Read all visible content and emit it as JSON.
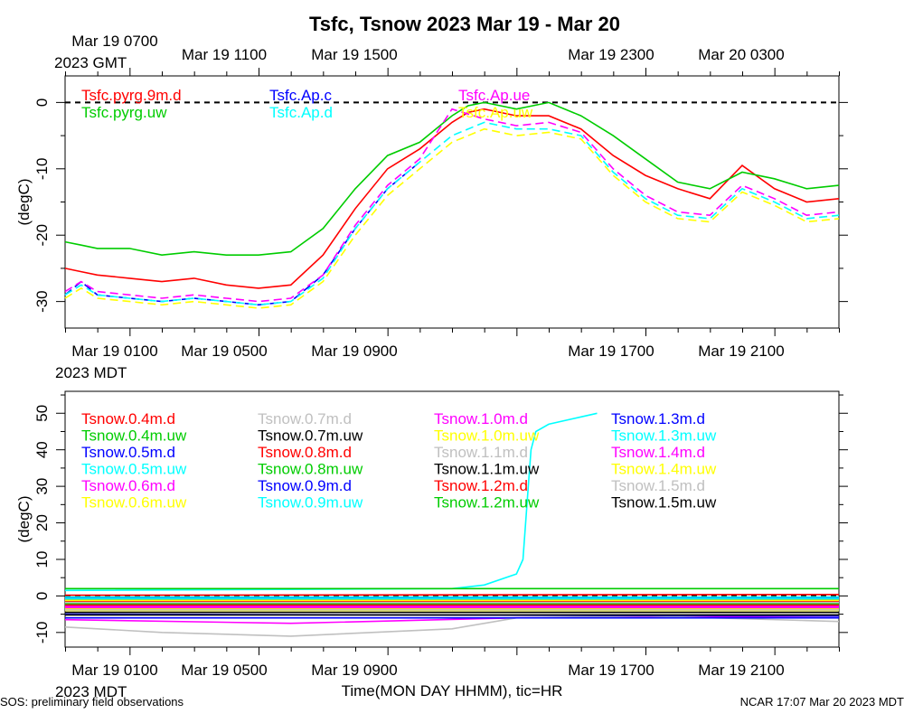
{
  "chart_data": [
    {
      "type": "line",
      "title": "Tsfc, Tsnow 2023 Mar 19 - Mar 20",
      "ylabel": "(degC)",
      "ylim": [
        -34,
        4
      ],
      "yticks": [
        -30,
        -20,
        -10,
        0
      ],
      "xlim_hours": [
        0,
        24
      ],
      "top_axis_labels": [
        "Mar 19 0700",
        "Mar 19 1100",
        "Mar 19 1500",
        "Mar 19 2300",
        "Mar 20 0300"
      ],
      "top_axis_sublabel": "2023 GMT",
      "bottom_axis_labels": [
        "Mar 19 0100",
        "Mar 19 0500",
        "Mar 19 0900",
        "Mar 19 1700",
        "Mar 19 2100"
      ],
      "bottom_axis_sublabel": "2023 MDT",
      "reference_line": 0,
      "grid": false,
      "series": [
        {
          "name": "Tsfc.pyrg.9m.d",
          "color": "#ff0000",
          "x": [
            0,
            0.5,
            1,
            2,
            3,
            4,
            5,
            6,
            7,
            8,
            9,
            10,
            11,
            12,
            12.5,
            13,
            13.5,
            14,
            15,
            16,
            17,
            18,
            19,
            20,
            21,
            22,
            23,
            24
          ],
          "y": [
            -25,
            -25.5,
            -26,
            -26.5,
            -27,
            -26.5,
            -27.5,
            -28,
            -27.5,
            -23,
            -16,
            -10,
            -7,
            -3,
            -1.5,
            -1,
            -1.5,
            -2,
            -2,
            -4,
            -8,
            -11,
            -13,
            -14.5,
            -9.5,
            -13,
            -15,
            -14.5
          ]
        },
        {
          "name": "Tsfc.pyrg.uw",
          "color": "#00cc00",
          "x": [
            0,
            0.5,
            1,
            2,
            3,
            4,
            5,
            6,
            7,
            8,
            9,
            10,
            11,
            12,
            12.5,
            13,
            13.5,
            14,
            15,
            16,
            17,
            18,
            19,
            20,
            21,
            22,
            23,
            24
          ],
          "y": [
            -21,
            -21.5,
            -22,
            -22,
            -23,
            -22.5,
            -23,
            -23,
            -22.5,
            -19,
            -13,
            -8,
            -6,
            -2,
            -0.5,
            0,
            -0.5,
            -1,
            0,
            -2,
            -5,
            -8.5,
            -12,
            -13,
            -10.5,
            -11.5,
            -13,
            -12.5
          ]
        },
        {
          "name": "Tsfc.Ap.c",
          "color": "#0000ff",
          "x": [
            0,
            0.5,
            1,
            2,
            3,
            4,
            5,
            6,
            7,
            8,
            9,
            10,
            11
          ],
          "y": [
            -29,
            -27,
            -29,
            -29.5,
            -30,
            -29.5,
            -30,
            -30.5,
            -30,
            -26,
            -19,
            -13,
            -9
          ]
        },
        {
          "name": "Tsfc.Ap.d",
          "color": "#00ffff",
          "x": [
            0,
            0.5,
            1,
            2,
            3,
            4,
            5,
            6,
            7,
            8,
            9,
            10,
            11,
            12,
            13,
            14,
            15,
            16,
            17,
            18,
            19,
            20,
            21,
            22,
            23,
            24
          ],
          "y": [
            -29,
            -27.5,
            -29,
            -29.5,
            -30,
            -29.5,
            -30,
            -30.5,
            -30,
            -26.5,
            -19,
            -13,
            -9,
            -5,
            -3,
            -4,
            -4,
            -5,
            -10.5,
            -14.5,
            -17,
            -17.5,
            -13,
            -15,
            -17.5,
            -17
          ]
        },
        {
          "name": "Tsfc.Ap.ue",
          "color": "#ff00ff",
          "x": [
            0,
            0.5,
            1,
            2,
            3,
            4,
            5,
            6,
            7,
            8,
            9,
            10,
            11,
            12,
            13,
            14,
            15,
            16,
            17,
            18,
            19,
            20,
            21,
            22,
            23,
            24
          ],
          "y": [
            -28.5,
            -27,
            -28.5,
            -29,
            -29.5,
            -29,
            -29.5,
            -30,
            -29.5,
            -26,
            -18.5,
            -12.5,
            -8.5,
            -1,
            -2.5,
            -3.5,
            -3,
            -4.5,
            -10,
            -14,
            -16.5,
            -17,
            -12.5,
            -14.5,
            -17,
            -16.5
          ]
        },
        {
          "name": "Tsfc.Ap.uw",
          "color": "#ffff00",
          "x": [
            0,
            0.5,
            1,
            2,
            3,
            4,
            5,
            6,
            7,
            8,
            9,
            10,
            11,
            12,
            13,
            14,
            15,
            16,
            17,
            18,
            19,
            20,
            21,
            22,
            23,
            24
          ],
          "y": [
            -29.5,
            -28,
            -29.5,
            -30,
            -30.5,
            -30,
            -30.5,
            -31,
            -30.5,
            -27,
            -20,
            -14,
            -10,
            -6,
            -4,
            -5,
            -4.5,
            -5.5,
            -11,
            -15,
            -17.5,
            -18,
            -13.5,
            -15.5,
            -18,
            -17.5
          ]
        }
      ]
    },
    {
      "type": "line",
      "ylabel": "(degC)",
      "ylim": [
        -14,
        56
      ],
      "yticks": [
        -10,
        0,
        10,
        20,
        30,
        40,
        50
      ],
      "xlim_hours": [
        0,
        24
      ],
      "bottom_axis_labels": [
        "Mar 19 0100",
        "Mar 19 0500",
        "Mar 19 0900",
        "Mar 19 1700",
        "Mar 19 2100"
      ],
      "bottom_axis_sublabel": "2023 MDT",
      "xlabel": "Time(MON DAY HHMM), tic=HR",
      "reference_line": 0,
      "grid": false,
      "series": [
        {
          "name": "Tsnow.0.4m.d",
          "color": "#ff0000",
          "x": [
            0,
            24
          ],
          "y": [
            0.2,
            0.4
          ]
        },
        {
          "name": "Tsnow.0.4m.uw",
          "color": "#00cc00",
          "x": [
            0,
            24
          ],
          "y": [
            -3,
            -3
          ]
        },
        {
          "name": "Tsnow.0.5m.d",
          "color": "#0000ff",
          "x": [
            0,
            24
          ],
          "y": [
            -0.5,
            -0.5
          ]
        },
        {
          "name": "Tsnow.0.5m.uw",
          "color": "#00ffff",
          "x": [
            0,
            12,
            13,
            14,
            14.2,
            14.35,
            14.45,
            14.6,
            15,
            16,
            16.5
          ],
          "y": [
            1.5,
            2,
            3,
            6,
            10,
            28,
            40,
            45,
            47,
            49,
            50
          ]
        },
        {
          "name": "Tsnow.0.6m.d",
          "color": "#ff00ff",
          "x": [
            0,
            7,
            14,
            24
          ],
          "y": [
            -6.5,
            -7.5,
            -6,
            -5.5
          ]
        },
        {
          "name": "Tsnow.0.6m.uw",
          "color": "#ffff00",
          "x": [
            0,
            24
          ],
          "y": [
            -4,
            -4
          ]
        },
        {
          "name": "Tsnow.0.7m.d",
          "color": "#c0c0c0",
          "x": [
            0,
            3,
            7,
            12,
            14,
            18,
            24
          ],
          "y": [
            -8.5,
            -10,
            -11,
            -9,
            -6,
            -5.5,
            -7
          ]
        },
        {
          "name": "Tsnow.0.7m.uw",
          "color": "#000000",
          "x": [
            0,
            24
          ],
          "y": [
            -1,
            -1
          ]
        },
        {
          "name": "Tsnow.0.8m.d",
          "color": "#ff0000",
          "x": [
            0,
            24
          ],
          "y": [
            -1.5,
            -1.5
          ]
        },
        {
          "name": "Tsnow.0.8m.uw",
          "color": "#00cc00",
          "x": [
            0,
            24
          ],
          "y": [
            -2.2,
            -2.2
          ]
        },
        {
          "name": "Tsnow.0.9m.d",
          "color": "#0000ff",
          "x": [
            0,
            24
          ],
          "y": [
            -5,
            -5.5
          ]
        },
        {
          "name": "Tsnow.0.9m.uw",
          "color": "#00ffff",
          "x": [
            0,
            24
          ],
          "y": [
            -0.3,
            -0.3
          ]
        },
        {
          "name": "Tsnow.1.0m.d",
          "color": "#ff00ff",
          "x": [
            0,
            24
          ],
          "y": [
            -2.8,
            -2.8
          ]
        },
        {
          "name": "Tsnow.1.0m.uw",
          "color": "#ffff00",
          "x": [
            0,
            24
          ],
          "y": [
            -3.5,
            -3.5
          ]
        },
        {
          "name": "Tsnow.1.1m.d",
          "color": "#c0c0c0",
          "x": [
            0,
            24
          ],
          "y": [
            -1.8,
            -1.8
          ]
        },
        {
          "name": "Tsnow.1.1m.uw",
          "color": "#000000",
          "x": [
            0,
            24
          ],
          "y": [
            -4.5,
            -4.5
          ]
        },
        {
          "name": "Tsnow.1.2m.d",
          "color": "#ff0000",
          "x": [
            0,
            24
          ],
          "y": [
            -2.5,
            -2.5
          ]
        },
        {
          "name": "Tsnow.1.2m.uw",
          "color": "#00cc00",
          "x": [
            0,
            24
          ],
          "y": [
            2,
            2
          ]
        },
        {
          "name": "Tsnow.1.3m.d",
          "color": "#0000ff",
          "x": [
            0,
            24
          ],
          "y": [
            -6,
            -6
          ]
        },
        {
          "name": "Tsnow.1.3m.uw",
          "color": "#00ffff",
          "x": [
            0,
            24
          ],
          "y": [
            -0.8,
            -0.8
          ]
        },
        {
          "name": "Tsnow.1.4m.d",
          "color": "#ff00ff",
          "x": [
            0,
            24
          ],
          "y": [
            -3.2,
            -3.2
          ]
        },
        {
          "name": "Tsnow.1.4m.uw",
          "color": "#ffff00",
          "x": [
            0,
            24
          ],
          "y": [
            -1.2,
            -1.2
          ]
        },
        {
          "name": "Tsnow.1.5m.d",
          "color": "#c0c0c0",
          "x": [
            0,
            24
          ],
          "y": [
            -3.8,
            -3.8
          ]
        },
        {
          "name": "Tsnow.1.5m.uw",
          "color": "#000000",
          "x": [
            0,
            24
          ],
          "y": [
            -5.2,
            -5.2
          ]
        }
      ]
    }
  ],
  "footer": {
    "left": "SOS: preliminary field observations",
    "right": "NCAR 17:07 Mar 20 2023 MDT"
  }
}
